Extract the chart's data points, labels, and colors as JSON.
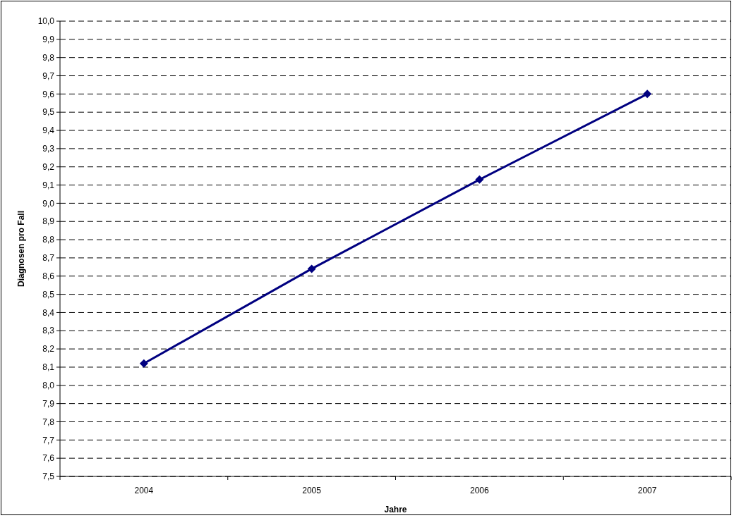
{
  "chart_data": {
    "type": "line",
    "xlabel": "Jahre",
    "ylabel": "Diagnosen pro Fall",
    "categories": [
      "2004",
      "2005",
      "2006",
      "2007"
    ],
    "series": [
      {
        "color": "#000080",
        "values": [
          8.12,
          8.64,
          9.13,
          9.6
        ]
      }
    ],
    "ylim": [
      7.5,
      10
    ],
    "yticks": [
      {
        "value": 7.5,
        "label": "7,5"
      },
      {
        "value": 7.6,
        "label": "7,6"
      },
      {
        "value": 7.7,
        "label": "7,7"
      },
      {
        "value": 7.8,
        "label": "7,8"
      },
      {
        "value": 7.9,
        "label": "7,9"
      },
      {
        "value": 8.0,
        "label": "8,0"
      },
      {
        "value": 8.1,
        "label": "8,1"
      },
      {
        "value": 8.2,
        "label": "8,2"
      },
      {
        "value": 8.3,
        "label": "8,3"
      },
      {
        "value": 8.4,
        "label": "8,4"
      },
      {
        "value": 8.5,
        "label": "8,5"
      },
      {
        "value": 8.6,
        "label": "8,6"
      },
      {
        "value": 8.7,
        "label": "8,7"
      },
      {
        "value": 8.8,
        "label": "8,8"
      },
      {
        "value": 8.9,
        "label": "8,9"
      },
      {
        "value": 9.0,
        "label": "9,0"
      },
      {
        "value": 9.1,
        "label": "9,1"
      },
      {
        "value": 9.2,
        "label": "9,2"
      },
      {
        "value": 9.3,
        "label": "9,3"
      },
      {
        "value": 9.4,
        "label": "9,4"
      },
      {
        "value": 9.5,
        "label": "9,5"
      },
      {
        "value": 9.6,
        "label": "9,6"
      },
      {
        "value": 9.7,
        "label": "9,7"
      },
      {
        "value": 9.8,
        "label": "9,8"
      },
      {
        "value": 9.9,
        "label": "9,9"
      },
      {
        "value": 10.0,
        "label": "10,0"
      }
    ],
    "grid": "y",
    "marker": "diamond",
    "line_style": "solid"
  }
}
